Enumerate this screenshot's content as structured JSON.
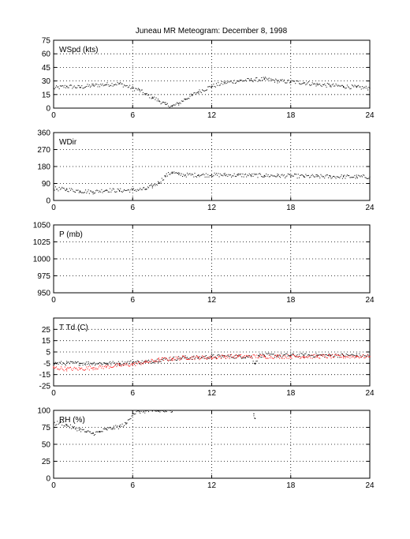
{
  "figure": {
    "title": "Juneau MR Meteogram:   December  8, 1998",
    "x_ticks": [
      "0",
      "6",
      "12",
      "18",
      "24"
    ],
    "colors": {
      "axis": "#000000",
      "grid": "#000000",
      "series_black": "#000000",
      "series_red": "#ff0000"
    }
  },
  "chart_data": [
    {
      "type": "scatter",
      "panel_label": "WSpd (kts)",
      "xlim": [
        0,
        24
      ],
      "ylim": [
        0,
        75
      ],
      "y_ticks": [
        "0",
        "15",
        "30",
        "45",
        "60",
        "75"
      ],
      "grid": true,
      "series": [
        {
          "color": "#000000",
          "x": [
            0,
            1,
            2,
            3,
            4,
            5,
            6,
            6.5,
            7,
            7.5,
            8,
            8.5,
            9,
            9.5,
            10,
            10.5,
            11,
            12,
            13,
            14,
            15,
            16,
            17,
            18,
            19,
            20,
            21,
            22,
            23,
            24
          ],
          "y": [
            22,
            24,
            23,
            25,
            26,
            27,
            22,
            20,
            15,
            12,
            8,
            4,
            2,
            5,
            10,
            14,
            18,
            24,
            28,
            30,
            31,
            32,
            30,
            29,
            28,
            26,
            25,
            24,
            23,
            22
          ]
        }
      ]
    },
    {
      "type": "scatter",
      "panel_label": "WDir",
      "xlim": [
        0,
        24
      ],
      "ylim": [
        0,
        360
      ],
      "y_ticks": [
        "0",
        "90",
        "180",
        "270",
        "360"
      ],
      "grid": true,
      "series": [
        {
          "color": "#000000",
          "x": [
            0,
            1,
            2,
            3,
            4,
            5,
            6,
            7,
            7.5,
            8,
            8.5,
            9,
            9.5,
            10,
            11,
            12,
            13,
            14,
            15,
            16,
            17,
            18,
            19,
            20,
            21,
            22,
            23,
            24
          ],
          "y": [
            62,
            58,
            50,
            45,
            55,
            52,
            55,
            60,
            75,
            95,
            130,
            150,
            138,
            135,
            135,
            135,
            135,
            134,
            133,
            132,
            131,
            130,
            128,
            127,
            126,
            126,
            125,
            125
          ]
        }
      ]
    },
    {
      "type": "scatter",
      "panel_label": "P (mb)",
      "xlim": [
        0,
        24
      ],
      "ylim": [
        950,
        1050
      ],
      "y_ticks": [
        "950",
        "975",
        "1000",
        "1025",
        "1050"
      ],
      "grid": true,
      "series": []
    },
    {
      "type": "scatter",
      "panel_label": "T Td (C)",
      "xlim": [
        0,
        24
      ],
      "ylim": [
        -25,
        35
      ],
      "y_ticks": [
        "-25",
        "-15",
        "-5",
        "5",
        "15",
        "25"
      ],
      "grid": true,
      "series": [
        {
          "color": "#000000",
          "x": [
            0,
            1,
            2,
            3,
            4,
            5,
            6,
            7,
            8,
            9,
            10,
            11,
            12,
            13,
            14,
            15,
            15.3,
            15.6,
            16,
            17,
            18,
            19,
            20,
            21,
            22,
            23,
            24
          ],
          "y": [
            -5,
            -5,
            -5,
            -5,
            -5,
            -5,
            -4,
            -4,
            -2,
            -1,
            0,
            0,
            1,
            1,
            1,
            1,
            -5,
            2,
            2,
            2,
            2,
            2,
            2,
            2,
            2,
            2,
            1
          ]
        },
        {
          "color": "#ff0000",
          "x": [
            0,
            1,
            2,
            3,
            4,
            5,
            6,
            7,
            8,
            9,
            10,
            11,
            12,
            13,
            14,
            15,
            16,
            17,
            18,
            19,
            20,
            21,
            22,
            23,
            24
          ],
          "y": [
            -9,
            -10,
            -10,
            -9,
            -8,
            -7,
            -6,
            -4,
            -2,
            -1,
            0,
            0,
            0,
            1,
            1,
            1,
            1,
            1,
            1,
            1,
            1,
            1,
            1,
            1,
            1
          ]
        }
      ]
    },
    {
      "type": "scatter",
      "panel_label": "RH (%)",
      "xlim": [
        0,
        24
      ],
      "ylim": [
        0,
        100
      ],
      "y_ticks": [
        "0",
        "25",
        "50",
        "75",
        "100"
      ],
      "grid": true,
      "series": [
        {
          "color": "#000000",
          "x": [
            0,
            0.5,
            1,
            1.5,
            2,
            2.5,
            3,
            3.5,
            4,
            4.5,
            5,
            5.5,
            6,
            6.5,
            7,
            7.5,
            8,
            8.5,
            9,
            15.2,
            15.3
          ],
          "y": [
            80,
            82,
            78,
            74,
            72,
            68,
            66,
            68,
            72,
            74,
            76,
            80,
            95,
            98,
            99,
            99,
            99,
            99,
            98,
            95,
            88
          ]
        }
      ]
    }
  ]
}
